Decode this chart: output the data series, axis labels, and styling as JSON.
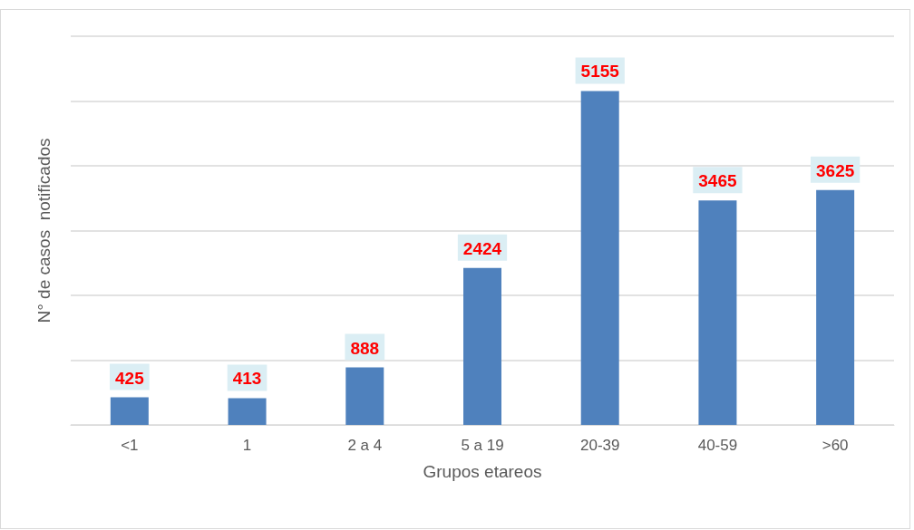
{
  "chart_data": {
    "type": "bar",
    "xlabel": "Grupos etareos",
    "ylabel": "N° de casos  notificados",
    "categories": [
      "<1",
      "1",
      "2 a 4",
      "5 a 19",
      "20-39",
      "40-59",
      ">60"
    ],
    "values": [
      425,
      413,
      888,
      2424,
      5155,
      3465,
      3625
    ],
    "color": "#4f81bd",
    "ylim": [
      0,
      6000
    ],
    "yticks": [
      {
        "value": 0,
        "label": null
      },
      {
        "value": 1000,
        "label": null
      },
      {
        "value": 2000,
        "label": null
      },
      {
        "value": 3000,
        "label": null
      },
      {
        "value": 4000,
        "label": null
      },
      {
        "value": 5000,
        "label": null
      },
      {
        "value": 6000,
        "label": null
      }
    ],
    "tick_labels": "x",
    "grid": "y",
    "data_labels": true
  }
}
